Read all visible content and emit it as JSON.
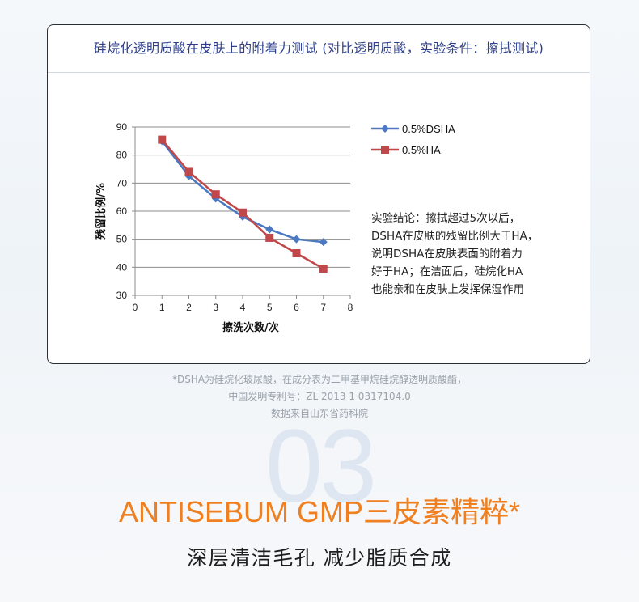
{
  "card": {
    "title": "硅烷化透明质酸在皮肤上的附着力测试 (对比透明质酸，实验条件：擦拭测试)"
  },
  "chart_data": {
    "type": "line",
    "x": [
      1,
      2,
      3,
      4,
      5,
      6,
      7
    ],
    "series": [
      {
        "name": "0.5%DSHA",
        "values": [
          85,
          72.5,
          64.5,
          58,
          53.5,
          50,
          49
        ],
        "color": "#4a78c2",
        "marker": "diamond"
      },
      {
        "name": "0.5%HA",
        "values": [
          85.5,
          74,
          66,
          59.5,
          50.5,
          45,
          39.5
        ],
        "color": "#c0474a",
        "marker": "square"
      }
    ],
    "xlabel": "擦洗次数/次",
    "ylabel": "残留比例/%",
    "xlim": [
      0,
      8
    ],
    "ylim": [
      30,
      90
    ],
    "xticks": [
      "0",
      "1",
      "2",
      "3",
      "4",
      "5",
      "6",
      "7",
      "8"
    ],
    "yticks": [
      "30",
      "40",
      "50",
      "60",
      "70",
      "80",
      "90"
    ],
    "grid": true,
    "legend": "top-right"
  },
  "conclusion": [
    "实验结论：擦拭超过5次以后，",
    "DSHA在皮肤的残留比例大于HA，",
    "说明DSHA在皮肤表面的附着力",
    "好于HA；在洁面后，硅烷化HA",
    "也能亲和在皮肤上发挥保湿作用"
  ],
  "notes": [
    "*DSHA为硅烷化玻尿酸，在成分表为二甲基甲烷硅烷醇透明质酸酯，",
    "中国发明专利号：ZL 2013 1 0317104.0",
    "数据来自山东省药科院"
  ],
  "section_number": "03",
  "headline": "ANTISEBUM GMP三皮素精粹*",
  "subline": "深层清洁毛孔  减少脂质合成"
}
